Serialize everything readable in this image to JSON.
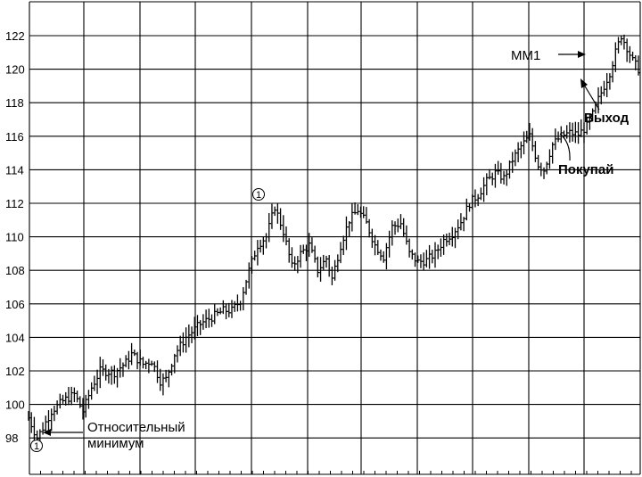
{
  "chart_data": {
    "type": "ohlc",
    "title": "",
    "xlabel": "",
    "ylabel": "",
    "ylim": [
      96.5,
      124
    ],
    "yticks": [
      "98",
      "100",
      "102",
      "104",
      "106",
      "108",
      "110",
      "112",
      "114",
      "116",
      "118",
      "120",
      "122"
    ],
    "grid": true,
    "anchors": [
      [
        0,
        99.2
      ],
      [
        3,
        98.0
      ],
      [
        5,
        98.6
      ],
      [
        8,
        99.6
      ],
      [
        12,
        100.2
      ],
      [
        16,
        100.6
      ],
      [
        19,
        99.6
      ],
      [
        22,
        101.0
      ],
      [
        25,
        102.0
      ],
      [
        30,
        101.9
      ],
      [
        34,
        102.5
      ],
      [
        36,
        103.0
      ],
      [
        40,
        102.4
      ],
      [
        43,
        102.6
      ],
      [
        46,
        101.4
      ],
      [
        48,
        101.5
      ],
      [
        51,
        103.0
      ],
      [
        55,
        104.0
      ],
      [
        60,
        104.8
      ],
      [
        64,
        105.2
      ],
      [
        68,
        105.6
      ],
      [
        71,
        105.6
      ],
      [
        74,
        106.2
      ],
      [
        77,
        108.0
      ],
      [
        80,
        109.5
      ],
      [
        83,
        110.0
      ],
      [
        86,
        111.8
      ],
      [
        89,
        110.3
      ],
      [
        92,
        108.2
      ],
      [
        95,
        109.0
      ],
      [
        98,
        109.5
      ],
      [
        101,
        108.0
      ],
      [
        104,
        108.7
      ],
      [
        106,
        107.5
      ],
      [
        109,
        109.5
      ],
      [
        112,
        111.0
      ],
      [
        115,
        111.6
      ],
      [
        118,
        110.8
      ],
      [
        121,
        109.5
      ],
      [
        124,
        108.8
      ],
      [
        127,
        110.6
      ],
      [
        130,
        110.8
      ],
      [
        133,
        109.0
      ],
      [
        136,
        108.5
      ],
      [
        139,
        108.6
      ],
      [
        142,
        109.0
      ],
      [
        145,
        109.8
      ],
      [
        148,
        110.2
      ],
      [
        151,
        110.9
      ],
      [
        154,
        112.0
      ],
      [
        157,
        112.5
      ],
      [
        160,
        113.3
      ],
      [
        163,
        113.8
      ],
      [
        166,
        113.5
      ],
      [
        169,
        114.6
      ],
      [
        172,
        115.4
      ],
      [
        175,
        116.0
      ],
      [
        178,
        114.3
      ],
      [
        180,
        114.0
      ],
      [
        183,
        115.5
      ],
      [
        186,
        116.0
      ],
      [
        189,
        116.2
      ],
      [
        192,
        116.1
      ],
      [
        195,
        116.6
      ],
      [
        197,
        117.3
      ],
      [
        199,
        118.2
      ],
      [
        201,
        119.0
      ],
      [
        203,
        119.8
      ],
      [
        205,
        121.0
      ],
      [
        207,
        122.0
      ],
      [
        209,
        121.3
      ],
      [
        211,
        120.5
      ],
      [
        213,
        120.0
      ]
    ]
  },
  "annotations": {
    "mm1": "MM1",
    "exit": "Выход",
    "buy": "Покупай",
    "rel_min_line1": "Относительный",
    "rel_min_line2": "минимум",
    "marker_label": "1"
  },
  "colors": {
    "ink": "#000000",
    "background": "#ffffff"
  }
}
